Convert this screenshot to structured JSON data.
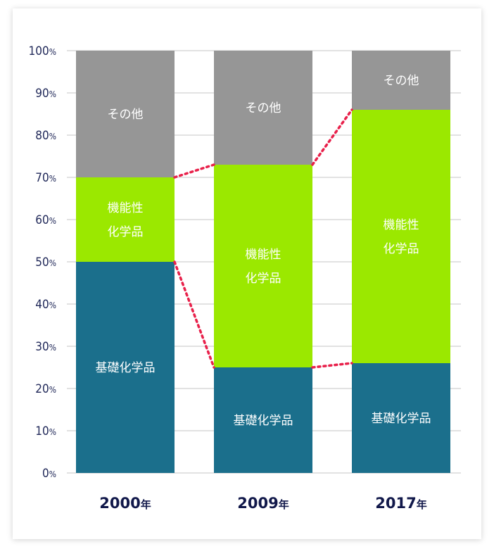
{
  "chart_data": {
    "type": "bar",
    "stacked": true,
    "categories": [
      "2000年",
      "2009年",
      "2017年"
    ],
    "series": [
      {
        "name": "基礎化学品",
        "values": [
          50,
          25,
          26
        ],
        "color": "#1b6f8c"
      },
      {
        "name": "機能性\n化学品",
        "values": [
          20,
          48,
          60
        ],
        "color": "#9be800"
      },
      {
        "name": "その他",
        "values": [
          30,
          27,
          14
        ],
        "color": "#969696"
      }
    ],
    "segment_labels": [
      [
        "基礎化学品",
        "機能性\n化学品",
        "その他"
      ],
      [
        "基礎化学品",
        "機能性\n化学品",
        "その他"
      ],
      [
        "基礎化学品",
        "機能性\n化学品",
        "その他"
      ]
    ],
    "yticks": [
      "0%",
      "10%",
      "20%",
      "30%",
      "40%",
      "50%",
      "60%",
      "70%",
      "80%",
      "90%",
      "100%"
    ],
    "ylim": [
      0,
      100
    ],
    "grid": true,
    "connector_color": "#e8204a",
    "title": "",
    "xlabel": "",
    "ylabel": ""
  }
}
